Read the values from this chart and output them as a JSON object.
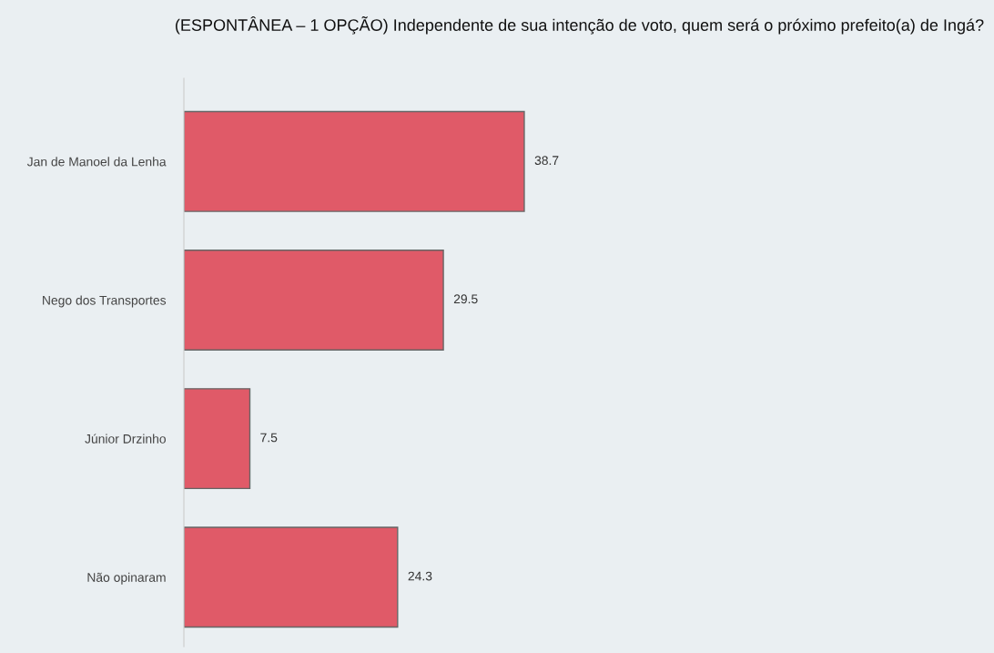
{
  "chart_data": {
    "type": "bar",
    "orientation": "horizontal",
    "title": "(ESPONTÂNEA – 1 OPÇÃO) Independente de sua intenção de voto, quem será o próximo prefeito(a) de Ingá?",
    "categories": [
      "Jan de Manoel da Lenha",
      "Nego dos Transportes",
      "Júnior Drzinho",
      "Não opinaram"
    ],
    "values": [
      38.7,
      29.5,
      7.5,
      24.3
    ],
    "color": "#e05a68",
    "data_labels": true,
    "grid": false,
    "legend": false
  }
}
